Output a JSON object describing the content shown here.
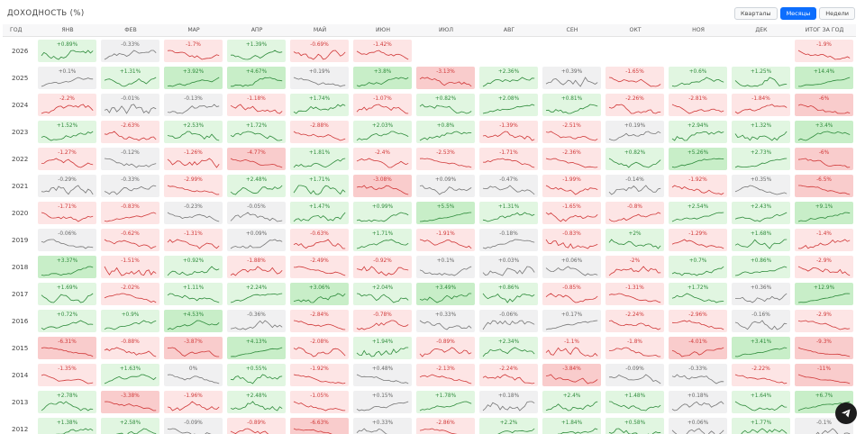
{
  "header": {
    "title": "ДОХОДНОСТЬ (%)"
  },
  "toggle": {
    "quarters": "Кварталы",
    "months": "Месяцы",
    "weeks": "Недели",
    "active": "months"
  },
  "columns": [
    "ГОД",
    "ЯНВ",
    "ФЕВ",
    "МАР",
    "АПР",
    "МАЙ",
    "ИЮН",
    "ИЮЛ",
    "АВГ",
    "СЕН",
    "ОКТ",
    "НОЯ",
    "ДЕК",
    "ИТОГ ЗА ГОД"
  ],
  "colors": {
    "positive": "#2e8b3b",
    "negative": "#d03838",
    "neutral": "#777777",
    "accent": "#0d6efd"
  },
  "rows": [
    {
      "year": "2026",
      "values": [
        "+0.89%",
        "-0.33%",
        "-1.7%",
        "+1.39%",
        "-0.69%",
        "-1.42%",
        "",
        "",
        "",
        "",
        "",
        "",
        "-1.9%"
      ]
    },
    {
      "year": "2025",
      "values": [
        "+0.1%",
        "+1.31%",
        "+3.92%",
        "+4.67%",
        "+0.19%",
        "+3.8%",
        "-3.13%",
        "+2.36%",
        "+0.39%",
        "-1.65%",
        "+0.6%",
        "+1.25%",
        "+14.4%"
      ]
    },
    {
      "year": "2024",
      "values": [
        "-2.2%",
        "-0.01%",
        "-0.13%",
        "-1.18%",
        "+1.74%",
        "-1.07%",
        "+0.82%",
        "+2.08%",
        "+0.81%",
        "-2.26%",
        "-2.81%",
        "-1.84%",
        "-6%"
      ]
    },
    {
      "year": "2023",
      "values": [
        "+1.52%",
        "-2.63%",
        "+2.53%",
        "+1.72%",
        "-2.88%",
        "+2.03%",
        "+0.8%",
        "-1.39%",
        "-2.51%",
        "+0.19%",
        "+2.94%",
        "+1.32%",
        "+3.4%"
      ]
    },
    {
      "year": "2022",
      "values": [
        "-1.27%",
        "-0.12%",
        "-1.26%",
        "-4.77%",
        "+1.81%",
        "-2.4%",
        "-2.53%",
        "-1.71%",
        "-2.36%",
        "+0.82%",
        "+5.26%",
        "+2.73%",
        "-6%"
      ]
    },
    {
      "year": "2021",
      "values": [
        "-0.29%",
        "-0.33%",
        "-2.99%",
        "+2.48%",
        "+1.71%",
        "-3.08%",
        "+0.09%",
        "-0.47%",
        "-1.99%",
        "-0.14%",
        "-1.92%",
        "+0.35%",
        "-6.5%"
      ]
    },
    {
      "year": "2020",
      "values": [
        "-1.71%",
        "-0.83%",
        "-0.23%",
        "-0.05%",
        "+1.47%",
        "+0.99%",
        "+5.5%",
        "+1.31%",
        "-1.65%",
        "-0.8%",
        "+2.54%",
        "+2.43%",
        "+9.1%"
      ]
    },
    {
      "year": "2019",
      "values": [
        "-0.06%",
        "-0.62%",
        "-1.31%",
        "+0.09%",
        "-0.63%",
        "+1.71%",
        "-1.91%",
        "-0.18%",
        "-0.83%",
        "+2%",
        "-1.29%",
        "+1.68%",
        "-1.4%"
      ]
    },
    {
      "year": "2018",
      "values": [
        "+3.37%",
        "-1.51%",
        "+0.92%",
        "-1.88%",
        "-2.49%",
        "-0.92%",
        "+0.1%",
        "+0.03%",
        "+0.06%",
        "-2%",
        "+0.7%",
        "+0.86%",
        "-2.9%"
      ]
    },
    {
      "year": "2017",
      "values": [
        "+1.69%",
        "-2.02%",
        "+1.11%",
        "+2.24%",
        "+3.06%",
        "+2.04%",
        "+3.49%",
        "+0.86%",
        "-0.85%",
        "-1.31%",
        "+1.72%",
        "+0.36%",
        "+12.9%"
      ]
    },
    {
      "year": "2016",
      "values": [
        "+0.72%",
        "+0.9%",
        "+4.53%",
        "-0.36%",
        "-2.84%",
        "-0.78%",
        "+0.33%",
        "-0.06%",
        "+0.17%",
        "-2.24%",
        "-2.96%",
        "-0.16%",
        "-2.9%"
      ]
    },
    {
      "year": "2015",
      "values": [
        "-6.31%",
        "-0.88%",
        "-3.87%",
        "+4.13%",
        "-2.08%",
        "+1.94%",
        "-0.89%",
        "+2.34%",
        "-1.1%",
        "-1.8%",
        "-4.01%",
        "+3.41%",
        "-9.3%"
      ]
    },
    {
      "year": "2014",
      "values": [
        "-1.35%",
        "+1.63%",
        "0%",
        "+0.55%",
        "-1.92%",
        "+0.48%",
        "-2.13%",
        "-2.24%",
        "-3.84%",
        "-0.09%",
        "-0.33%",
        "-2.22%",
        "-11%"
      ]
    },
    {
      "year": "2013",
      "values": [
        "+2.78%",
        "-3.38%",
        "-1.96%",
        "+2.48%",
        "-1.05%",
        "+0.15%",
        "+1.78%",
        "+0.18%",
        "+2.4%",
        "+1.48%",
        "+0.18%",
        "+1.64%",
        "+6.7%"
      ]
    },
    {
      "year": "2012",
      "values": [
        "+1.38%",
        "+2.58%",
        "-0.09%",
        "-0.89%",
        "-6.63%",
        "+0.33%",
        "-2.86%",
        "+2.2%",
        "+1.84%",
        "+0.58%",
        "+0.06%",
        "+1.77%",
        "-0.1%"
      ]
    }
  ]
}
